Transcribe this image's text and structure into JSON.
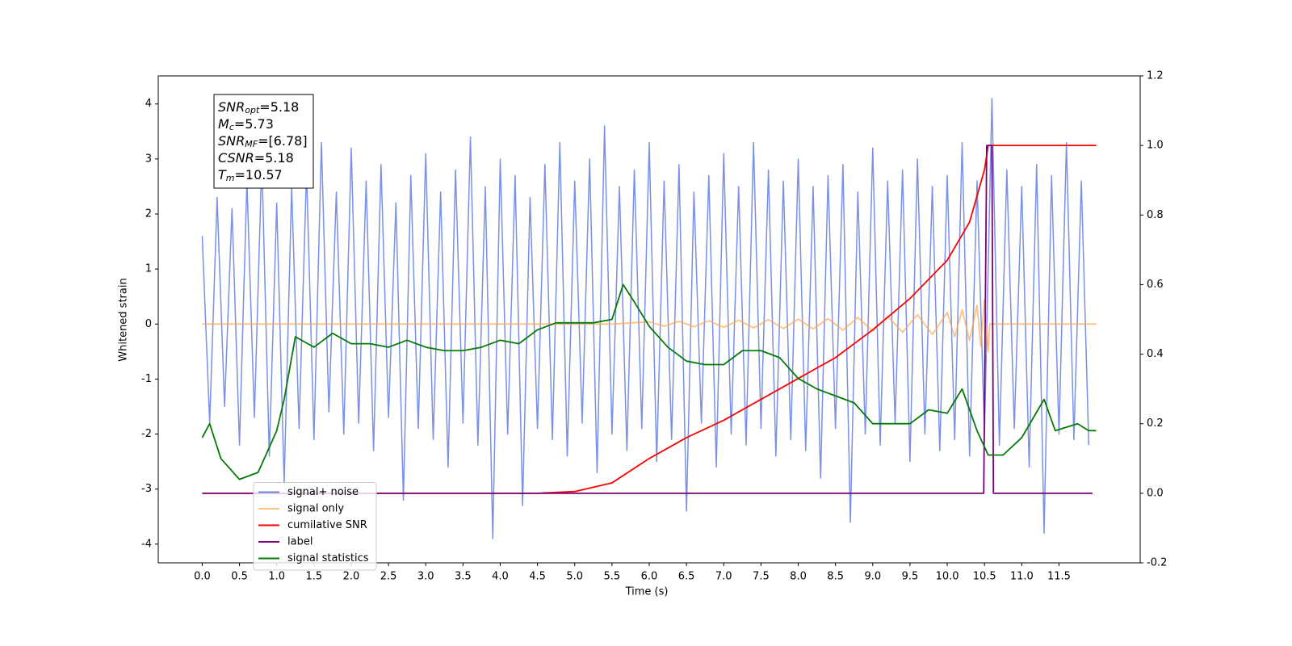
{
  "chart_data": {
    "type": "line",
    "xlabel": "Time (s)",
    "ylabel": "Whitened strain",
    "xlim": [
      -0.59,
      12.59
    ],
    "xticks": [
      {
        "value": 0,
        "label": "0.0"
      },
      0.5,
      {
        "value": 1,
        "label": "1.0"
      },
      1.5,
      {
        "value": 2,
        "label": "2.0"
      },
      2.5,
      {
        "value": 3,
        "label": "3.0"
      },
      3.5,
      {
        "value": 4,
        "label": "4.0"
      },
      4.5,
      {
        "value": 5,
        "label": "5.0"
      },
      5.5,
      {
        "value": 6,
        "label": "6.0"
      },
      6.5,
      {
        "value": 7,
        "label": "7.0"
      },
      7.5,
      {
        "value": 8,
        "label": "8.0"
      },
      8.5,
      {
        "value": 9,
        "label": "9.0"
      },
      9.5,
      {
        "value": 10,
        "label": "10.0"
      },
      10.5,
      {
        "value": 11,
        "label": "11.0"
      },
      11.5
    ],
    "ylim": [
      -4.34,
      4.51
    ],
    "yticks": [
      -4,
      -3,
      -2,
      -1,
      0,
      1,
      2,
      3,
      4
    ],
    "y2lim": [
      -0.2,
      1.2
    ],
    "y2ticks": [
      -0.2,
      {
        "value": 0,
        "label": "0.0"
      },
      0.2,
      0.4,
      0.6,
      0.8,
      {
        "value": 1,
        "label": "1.0"
      },
      1.2
    ],
    "legend": "lower left",
    "annotations": [
      {
        "symbol": "SNR",
        "sub": "opt",
        "text": "=5.18"
      },
      {
        "symbol": "M",
        "sub": "c",
        "text": "=5.73"
      },
      {
        "symbol": "SNR",
        "sub": "MF",
        "text": "=[6.78]"
      },
      {
        "symbol": "CSNR",
        "text": "=5.18"
      },
      {
        "symbol": "T",
        "sub": "m",
        "text": "=10.57"
      }
    ],
    "series": [
      {
        "name": "signal+ noise",
        "color": "#6a85e4",
        "axis": "y",
        "x": [
          0,
          0.1,
          0.2,
          0.3,
          0.4,
          0.5,
          0.6,
          0.7,
          0.8,
          0.9,
          1,
          1.1,
          1.2,
          1.3,
          1.4,
          1.5,
          1.6,
          1.7,
          1.8,
          1.9,
          2,
          2.1,
          2.2,
          2.3,
          2.4,
          2.5,
          2.6,
          2.7,
          2.8,
          2.9,
          3,
          3.1,
          3.2,
          3.3,
          3.4,
          3.5,
          3.6,
          3.7,
          3.8,
          3.9,
          4,
          4.1,
          4.2,
          4.3,
          4.4,
          4.5,
          4.6,
          4.7,
          4.8,
          4.9,
          5,
          5.1,
          5.2,
          5.3,
          5.4,
          5.5,
          5.6,
          5.7,
          5.8,
          5.9,
          6,
          6.1,
          6.2,
          6.3,
          6.4,
          6.5,
          6.6,
          6.7,
          6.8,
          6.9,
          7,
          7.1,
          7.2,
          7.3,
          7.4,
          7.5,
          7.6,
          7.7,
          7.8,
          7.9,
          8,
          8.1,
          8.2,
          8.3,
          8.4,
          8.5,
          8.6,
          8.7,
          8.8,
          8.9,
          9,
          9.1,
          9.2,
          9.3,
          9.4,
          9.5,
          9.6,
          9.7,
          9.8,
          9.9,
          10,
          10.1,
          10.2,
          10.3,
          10.4,
          10.5,
          10.6,
          10.7,
          10.8,
          10.9,
          11,
          11.1,
          11.2,
          11.3,
          11.4,
          11.5,
          11.6,
          11.7,
          11.8,
          11.9
        ],
        "values": [
          1.6,
          -1.8,
          2.3,
          -1.5,
          2.1,
          -2.2,
          2.6,
          -1.7,
          3.0,
          -2.4,
          2.2,
          -2.9,
          2.5,
          -1.9,
          2.8,
          -2.1,
          3.3,
          -1.6,
          2.4,
          -2.0,
          3.2,
          -1.8,
          2.6,
          -2.3,
          2.9,
          -1.7,
          2.2,
          -3.2,
          2.7,
          -1.9,
          3.1,
          -2.1,
          2.4,
          -2.6,
          2.8,
          -1.8,
          3.4,
          -2.2,
          2.5,
          -3.9,
          3.0,
          -2.0,
          2.7,
          -3.3,
          2.3,
          -1.9,
          2.9,
          -2.1,
          3.3,
          -2.4,
          2.6,
          -1.8,
          3.0,
          -2.7,
          3.6,
          -2.0,
          2.5,
          -2.3,
          2.8,
          -1.9,
          3.3,
          -2.5,
          2.6,
          -2.1,
          2.9,
          -3.4,
          2.4,
          -1.8,
          2.7,
          -2.6,
          3.1,
          -2.0,
          2.5,
          -2.2,
          3.3,
          -1.9,
          2.8,
          -2.4,
          2.6,
          -2.1,
          3.0,
          -2.3,
          2.5,
          -2.8,
          2.7,
          -1.9,
          2.9,
          -3.6,
          2.4,
          -2.0,
          3.2,
          -2.2,
          2.6,
          -1.8,
          2.8,
          -2.5,
          3.0,
          -2.0,
          2.5,
          -2.3,
          2.7,
          -2.1,
          3.3,
          -2.4,
          2.6,
          -2.0,
          4.1,
          -2.2,
          2.8,
          -1.9,
          2.5,
          -2.6,
          2.9,
          -3.8,
          2.7,
          -2.0,
          3.3,
          -2.1,
          2.6,
          -2.2
        ]
      },
      {
        "name": "signal only",
        "color": "#ffa54a",
        "axis": "y",
        "x": [
          0,
          5.5,
          6.0,
          6.2,
          6.4,
          6.6,
          6.8,
          7.0,
          7.2,
          7.4,
          7.6,
          7.8,
          8.0,
          8.2,
          8.4,
          8.6,
          8.8,
          9.0,
          9.2,
          9.4,
          9.6,
          9.8,
          10.0,
          10.1,
          10.2,
          10.3,
          10.4,
          10.45,
          10.5,
          10.55,
          10.57,
          12.0
        ],
        "values": [
          0,
          0,
          0.04,
          -0.04,
          0.05,
          -0.05,
          0.06,
          -0.06,
          0.07,
          -0.07,
          0.08,
          -0.08,
          0.09,
          -0.09,
          0.1,
          -0.11,
          0.12,
          -0.13,
          0.14,
          -0.15,
          0.17,
          -0.19,
          0.21,
          -0.23,
          0.26,
          -0.3,
          0.34,
          -0.4,
          0.45,
          -0.5,
          0,
          0
        ]
      },
      {
        "name": "cumilative SNR",
        "color": "#ff0000",
        "axis": "y2",
        "x": [
          0,
          4.5,
          5.0,
          5.5,
          6.0,
          6.5,
          7.0,
          7.5,
          8.0,
          8.5,
          9.0,
          9.5,
          10.0,
          10.3,
          10.5,
          10.55,
          12.0
        ],
        "values": [
          0,
          0,
          0.005,
          0.03,
          0.1,
          0.16,
          0.21,
          0.27,
          0.33,
          0.39,
          0.47,
          0.56,
          0.67,
          0.78,
          0.93,
          1.0,
          1.0
        ]
      },
      {
        "name": "label",
        "color": "#7a007a",
        "axis": "y2",
        "x": [
          0,
          10.49,
          10.53,
          10.6,
          10.62,
          11.95
        ],
        "values": [
          0,
          0,
          1,
          1,
          0,
          0
        ]
      },
      {
        "name": "signal statistics",
        "color": "#067a06",
        "axis": "y2",
        "x": [
          0,
          0.1,
          0.25,
          0.5,
          0.75,
          1.0,
          1.1,
          1.25,
          1.5,
          1.75,
          2.0,
          2.25,
          2.5,
          2.75,
          3.0,
          3.25,
          3.5,
          3.75,
          4.0,
          4.25,
          4.5,
          4.75,
          5.0,
          5.25,
          5.5,
          5.65,
          5.8,
          6.0,
          6.25,
          6.5,
          6.75,
          7.0,
          7.25,
          7.5,
          7.75,
          8.0,
          8.25,
          8.5,
          8.75,
          9.0,
          9.25,
          9.5,
          9.75,
          10.0,
          10.2,
          10.4,
          10.55,
          10.75,
          11.0,
          11.3,
          11.45,
          11.75,
          11.9,
          12.0
        ],
        "values": [
          0.16,
          0.2,
          0.1,
          0.04,
          0.06,
          0.18,
          0.27,
          0.45,
          0.42,
          0.46,
          0.43,
          0.43,
          0.42,
          0.44,
          0.42,
          0.41,
          0.41,
          0.42,
          0.44,
          0.43,
          0.47,
          0.49,
          0.49,
          0.49,
          0.5,
          0.6,
          0.55,
          0.48,
          0.42,
          0.38,
          0.37,
          0.37,
          0.41,
          0.41,
          0.39,
          0.33,
          0.3,
          0.28,
          0.26,
          0.2,
          0.2,
          0.2,
          0.24,
          0.23,
          0.3,
          0.18,
          0.11,
          0.11,
          0.16,
          0.27,
          0.18,
          0.2,
          0.18,
          0.18
        ]
      }
    ]
  }
}
